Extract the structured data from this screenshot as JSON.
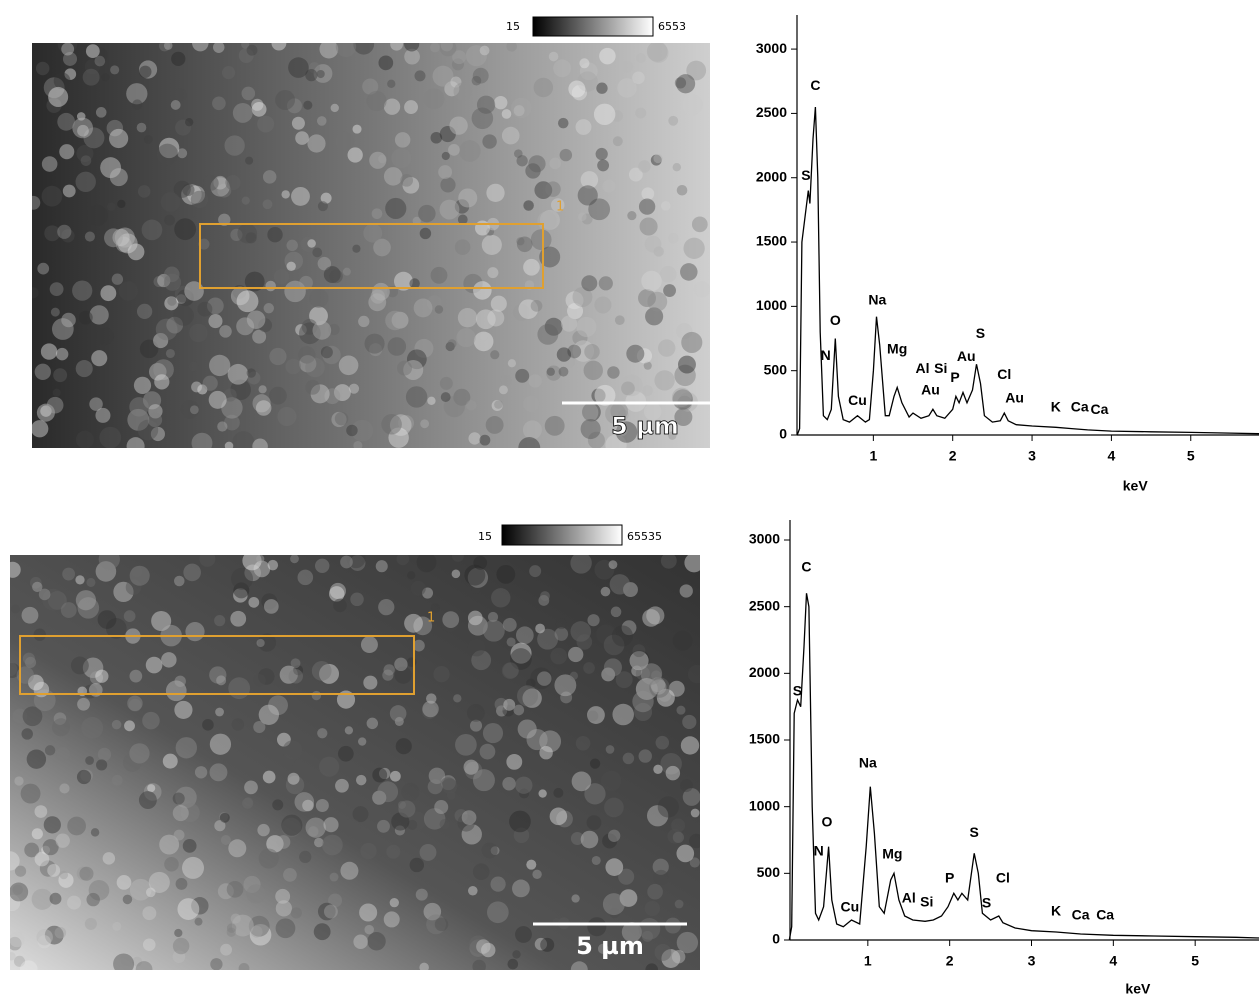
{
  "images": [
    {
      "colorbar_min": 15,
      "colorbar_max": 6553,
      "roi_label": "1",
      "scale_bar": "5 µm"
    },
    {
      "colorbar_min": 15,
      "colorbar_max": 65535,
      "roi_label": "1",
      "scale_bar": "5 µm"
    }
  ],
  "chart_data": [
    {
      "type": "line",
      "x_label": "keV",
      "color": "#000000",
      "xlim": [
        0,
        5.86
      ],
      "ylim": [
        0,
        3265
      ],
      "xticks": [
        1,
        2,
        3,
        4,
        5
      ],
      "yticks": [
        0,
        500,
        1000,
        1500,
        2000,
        2500,
        3000
      ],
      "x": [
        0.04,
        0.07,
        0.1,
        0.14,
        0.18,
        0.2,
        0.24,
        0.27,
        0.3,
        0.33,
        0.37,
        0.42,
        0.47,
        0.52,
        0.56,
        0.62,
        0.7,
        0.8,
        0.9,
        0.95,
        1.0,
        1.04,
        1.08,
        1.15,
        1.2,
        1.26,
        1.3,
        1.36,
        1.45,
        1.5,
        1.6,
        1.7,
        1.75,
        1.8,
        1.9,
        2.0,
        2.04,
        2.08,
        2.13,
        2.18,
        2.25,
        2.3,
        2.35,
        2.4,
        2.5,
        2.6,
        2.65,
        2.7,
        2.8,
        3.0,
        3.3,
        3.5,
        3.7,
        4.0,
        4.5,
        5.0,
        5.5,
        5.86
      ],
      "values": [
        0,
        50,
        1500,
        1700,
        1900,
        1800,
        2300,
        2550,
        2000,
        800,
        150,
        120,
        200,
        750,
        300,
        120,
        100,
        150,
        100,
        120,
        500,
        920,
        700,
        150,
        150,
        300,
        370,
        250,
        140,
        170,
        130,
        150,
        200,
        150,
        130,
        200,
        300,
        250,
        330,
        250,
        350,
        550,
        400,
        150,
        100,
        110,
        170,
        110,
        80,
        70,
        60,
        50,
        40,
        30,
        25,
        20,
        15,
        10
      ],
      "annotations": [
        {
          "text": "S",
          "x": 0.15,
          "y": 1950
        },
        {
          "text": "C",
          "x": 0.27,
          "y": 2650
        },
        {
          "text": "N",
          "x": 0.4,
          "y": 550
        },
        {
          "text": "O",
          "x": 0.52,
          "y": 820
        },
        {
          "text": "Cu",
          "x": 0.8,
          "y": 200
        },
        {
          "text": "Na",
          "x": 1.05,
          "y": 980
        },
        {
          "text": "Mg",
          "x": 1.3,
          "y": 600
        },
        {
          "text": "Al",
          "x": 1.62,
          "y": 450
        },
        {
          "text": "Si",
          "x": 1.85,
          "y": 450
        },
        {
          "text": "Au",
          "x": 1.72,
          "y": 280
        },
        {
          "text": "P",
          "x": 2.03,
          "y": 380
        },
        {
          "text": "Au",
          "x": 2.17,
          "y": 540
        },
        {
          "text": "S",
          "x": 2.35,
          "y": 720
        },
        {
          "text": "Cl",
          "x": 2.65,
          "y": 400
        },
        {
          "text": "Au",
          "x": 2.78,
          "y": 220
        },
        {
          "text": "K",
          "x": 3.3,
          "y": 150
        },
        {
          "text": "Ca",
          "x": 3.6,
          "y": 150
        },
        {
          "text": "Ca",
          "x": 3.85,
          "y": 130
        }
      ]
    },
    {
      "type": "line",
      "x_label": "keV",
      "color": "#000000",
      "xlim": [
        0,
        5.78
      ],
      "ylim": [
        0,
        3150
      ],
      "xticks": [
        1,
        2,
        3,
        4,
        5
      ],
      "yticks": [
        0,
        500,
        1000,
        1500,
        2000,
        2500,
        3000
      ],
      "x": [
        0.04,
        0.07,
        0.1,
        0.14,
        0.18,
        0.22,
        0.25,
        0.28,
        0.32,
        0.36,
        0.4,
        0.46,
        0.52,
        0.56,
        0.62,
        0.7,
        0.8,
        0.9,
        0.98,
        1.03,
        1.08,
        1.14,
        1.2,
        1.28,
        1.32,
        1.38,
        1.45,
        1.55,
        1.7,
        1.8,
        1.9,
        1.98,
        2.05,
        2.1,
        2.15,
        2.22,
        2.3,
        2.35,
        2.4,
        2.5,
        2.6,
        2.65,
        2.8,
        3.0,
        3.3,
        3.6,
        4.0,
        4.5,
        5.0,
        5.5,
        5.78
      ],
      "values": [
        0,
        100,
        1700,
        1800,
        1750,
        2200,
        2600,
        2500,
        1000,
        200,
        150,
        250,
        700,
        300,
        120,
        100,
        150,
        120,
        700,
        1150,
        800,
        250,
        200,
        450,
        500,
        300,
        180,
        150,
        140,
        150,
        180,
        250,
        350,
        300,
        350,
        300,
        650,
        500,
        200,
        150,
        180,
        130,
        90,
        70,
        60,
        45,
        35,
        30,
        25,
        20,
        15
      ],
      "annotations": [
        {
          "text": "S",
          "x": 0.14,
          "y": 1800
        },
        {
          "text": "C",
          "x": 0.25,
          "y": 2730
        },
        {
          "text": "N",
          "x": 0.4,
          "y": 600
        },
        {
          "text": "O",
          "x": 0.5,
          "y": 820
        },
        {
          "text": "Cu",
          "x": 0.78,
          "y": 180
        },
        {
          "text": "Na",
          "x": 1.0,
          "y": 1260
        },
        {
          "text": "Mg",
          "x": 1.3,
          "y": 580
        },
        {
          "text": "Al",
          "x": 1.5,
          "y": 250
        },
        {
          "text": "Si",
          "x": 1.72,
          "y": 220
        },
        {
          "text": "P",
          "x": 2.0,
          "y": 400
        },
        {
          "text": "S",
          "x": 2.3,
          "y": 740
        },
        {
          "text": "Cl",
          "x": 2.65,
          "y": 400
        },
        {
          "text": "S",
          "x": 2.45,
          "y": 210
        },
        {
          "text": "K",
          "x": 3.3,
          "y": 150
        },
        {
          "text": "Ca",
          "x": 3.6,
          "y": 120
        },
        {
          "text": "Ca",
          "x": 3.9,
          "y": 120
        }
      ]
    }
  ]
}
